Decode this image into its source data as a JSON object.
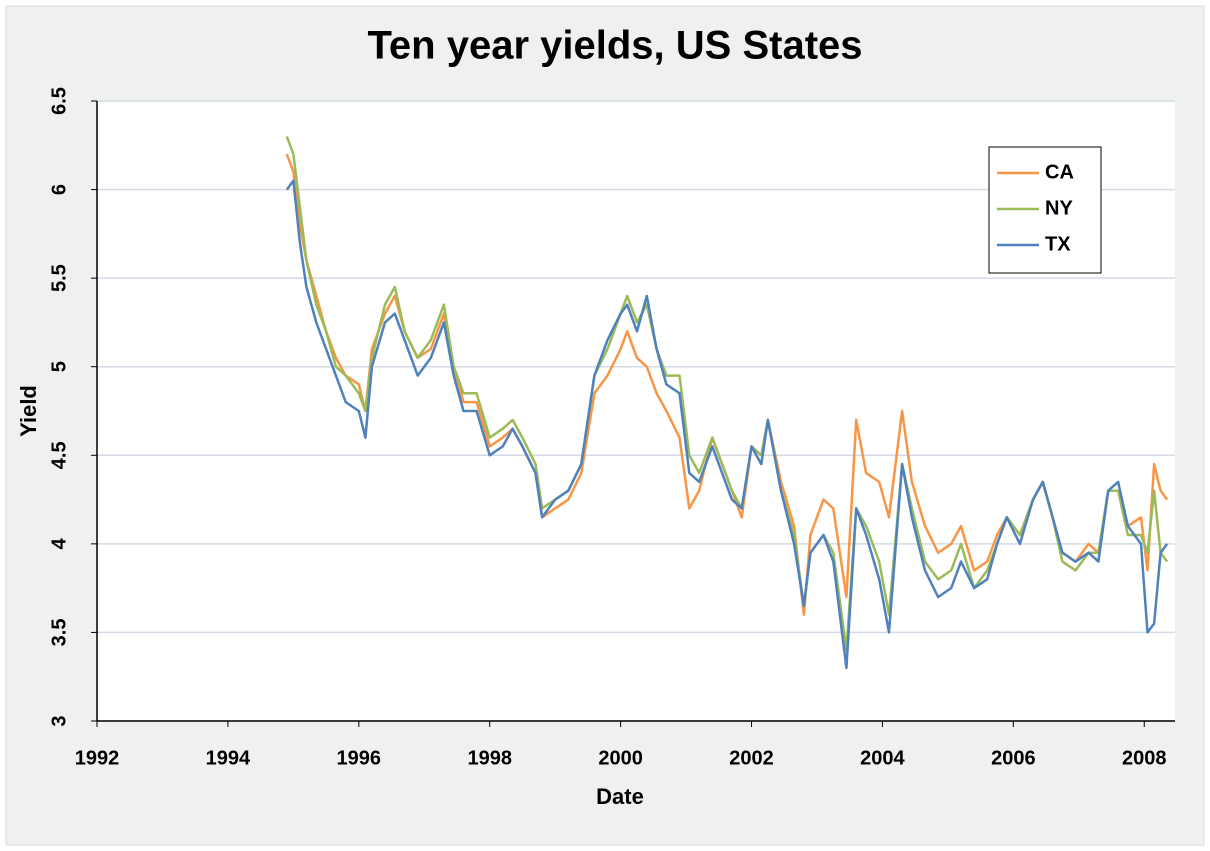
{
  "chart_data": {
    "type": "line",
    "title": "Ten year yields, US States",
    "xlabel": "Date",
    "ylabel": "Yield",
    "xlim": [
      1992,
      2008.47
    ],
    "xticks": [
      1992,
      1994,
      1996,
      1998,
      2000,
      2002,
      2004,
      2006,
      2008
    ],
    "ylim": [
      3,
      6.5
    ],
    "yticks": [
      3,
      3.5,
      4,
      4.5,
      5,
      5.5,
      6,
      6.5
    ],
    "grid": true,
    "legend": "upper right",
    "x": [
      1994.9,
      1995.0,
      1995.1,
      1995.2,
      1995.35,
      1995.5,
      1995.65,
      1995.8,
      1996.0,
      1996.1,
      1996.2,
      1996.4,
      1996.55,
      1996.7,
      1996.9,
      1997.1,
      1997.3,
      1997.45,
      1997.6,
      1997.8,
      1998.0,
      1998.2,
      1998.35,
      1998.5,
      1998.7,
      1998.8,
      1999.0,
      1999.2,
      1999.4,
      1999.6,
      1999.8,
      2000.0,
      2000.1,
      2000.25,
      2000.4,
      2000.55,
      2000.7,
      2000.9,
      2001.05,
      2001.2,
      2001.4,
      2001.55,
      2001.7,
      2001.85,
      2002.0,
      2002.15,
      2002.25,
      2002.45,
      2002.65,
      2002.8,
      2002.9,
      2003.1,
      2003.25,
      2003.45,
      2003.6,
      2003.75,
      2003.95,
      2004.1,
      2004.3,
      2004.45,
      2004.65,
      2004.85,
      2005.05,
      2005.2,
      2005.4,
      2005.6,
      2005.75,
      2005.9,
      2006.1,
      2006.3,
      2006.45,
      2006.6,
      2006.75,
      2006.95,
      2007.15,
      2007.3,
      2007.45,
      2007.6,
      2007.75,
      2007.95,
      2008.05,
      2008.15,
      2008.25,
      2008.35
    ],
    "series": [
      {
        "name": "CA",
        "color": "#f79646",
        "values": [
          6.2,
          6.1,
          5.8,
          5.6,
          5.4,
          5.2,
          5.05,
          4.95,
          4.9,
          4.75,
          5.1,
          5.3,
          5.4,
          5.2,
          5.05,
          5.1,
          5.3,
          5.0,
          4.8,
          4.8,
          4.55,
          4.6,
          4.65,
          4.55,
          4.4,
          4.15,
          4.2,
          4.25,
          4.4,
          4.85,
          4.95,
          5.1,
          5.2,
          5.05,
          5.0,
          4.85,
          4.75,
          4.6,
          4.2,
          4.3,
          4.6,
          4.45,
          4.3,
          4.15,
          4.55,
          4.5,
          4.7,
          4.35,
          4.1,
          3.6,
          4.05,
          4.25,
          4.2,
          3.7,
          4.7,
          4.4,
          4.35,
          4.15,
          4.75,
          4.35,
          4.1,
          3.95,
          4.0,
          4.1,
          3.85,
          3.9,
          4.05,
          4.15,
          4.05,
          4.25,
          4.35,
          4.15,
          3.95,
          3.9,
          4.0,
          3.95,
          4.3,
          4.3,
          4.1,
          4.15,
          3.85,
          4.45,
          4.3,
          4.25
        ]
      },
      {
        "name": "NY",
        "color": "#9bbb59",
        "values": [
          6.3,
          6.2,
          5.9,
          5.6,
          5.35,
          5.2,
          5.0,
          4.95,
          4.85,
          4.75,
          5.05,
          5.35,
          5.45,
          5.2,
          5.05,
          5.15,
          5.35,
          5.0,
          4.85,
          4.85,
          4.6,
          4.65,
          4.7,
          4.6,
          4.45,
          4.2,
          4.25,
          4.3,
          4.45,
          4.95,
          5.1,
          5.3,
          5.4,
          5.25,
          5.35,
          5.1,
          4.95,
          4.95,
          4.5,
          4.4,
          4.6,
          4.45,
          4.3,
          4.2,
          4.55,
          4.5,
          4.7,
          4.3,
          4.05,
          3.65,
          3.95,
          4.05,
          3.95,
          3.4,
          4.2,
          4.1,
          3.9,
          3.6,
          4.45,
          4.2,
          3.9,
          3.8,
          3.85,
          4.0,
          3.75,
          3.85,
          4.0,
          4.15,
          4.05,
          4.25,
          4.35,
          4.15,
          3.9,
          3.85,
          3.95,
          3.95,
          4.3,
          4.3,
          4.05,
          4.05,
          3.95,
          4.3,
          3.95,
          3.9
        ]
      },
      {
        "name": "TX",
        "color": "#4f81bd",
        "values": [
          6.0,
          6.05,
          5.7,
          5.45,
          5.25,
          5.1,
          4.95,
          4.8,
          4.75,
          4.6,
          5.0,
          5.25,
          5.3,
          5.15,
          4.95,
          5.05,
          5.25,
          4.95,
          4.75,
          4.75,
          4.5,
          4.55,
          4.65,
          4.55,
          4.4,
          4.15,
          4.25,
          4.3,
          4.45,
          4.95,
          5.15,
          5.3,
          5.35,
          5.2,
          5.4,
          5.1,
          4.9,
          4.85,
          4.4,
          4.35,
          4.55,
          4.4,
          4.25,
          4.2,
          4.55,
          4.45,
          4.7,
          4.3,
          4.0,
          3.65,
          3.95,
          4.05,
          3.9,
          3.3,
          4.2,
          4.05,
          3.8,
          3.5,
          4.45,
          4.15,
          3.85,
          3.7,
          3.75,
          3.9,
          3.75,
          3.8,
          4.0,
          4.15,
          4.0,
          4.25,
          4.35,
          4.15,
          3.95,
          3.9,
          3.95,
          3.9,
          4.3,
          4.35,
          4.1,
          4.0,
          3.5,
          3.55,
          3.95,
          4.0
        ]
      }
    ]
  }
}
